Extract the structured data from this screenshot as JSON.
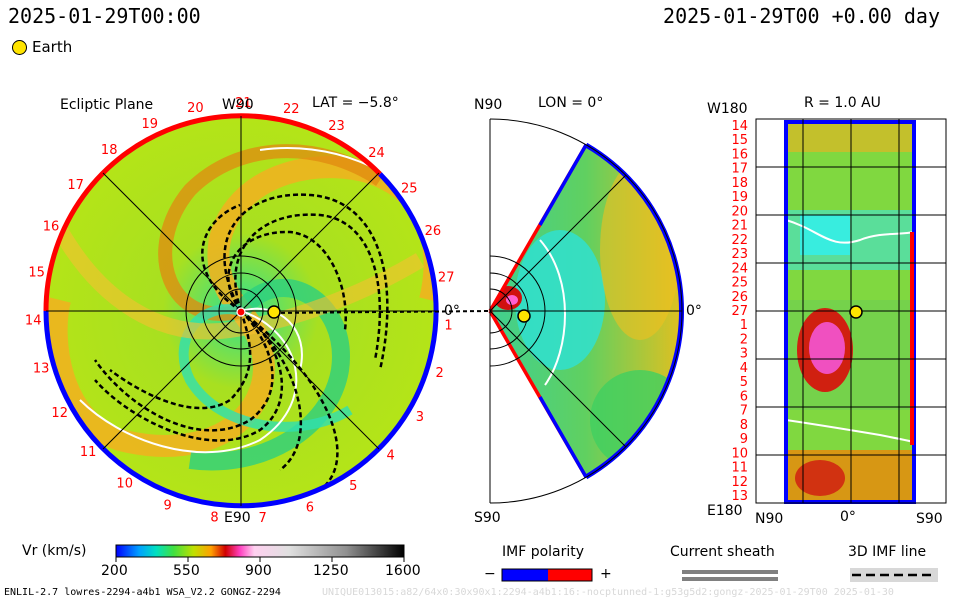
{
  "header": {
    "left_time": "2025-01-29T00:00",
    "right_time": "2025-01-29T00 +0.00 day",
    "legend_label": "Earth"
  },
  "colors": {
    "earth_fill": "#ffe400",
    "sector_red": "#ff0000",
    "sector_blue": "#0000ff"
  },
  "ecliptic": {
    "title": "Ecliptic Plane",
    "top_label": "W90",
    "bottom_label": "E90",
    "lat_label": "LAT = −5.8°",
    "zero_label": "0°",
    "rotation_numbers": [
      "1",
      "2",
      "3",
      "4",
      "5",
      "6",
      "7",
      "8",
      "9",
      "10",
      "11",
      "12",
      "13",
      "14",
      "15",
      "16",
      "17",
      "18",
      "19",
      "20",
      "21",
      "22",
      "23",
      "24",
      "25",
      "26",
      "27"
    ]
  },
  "meridional": {
    "top_label": "N90",
    "lon_label": "LON = 0°",
    "zero_label": "0°",
    "bottom_label": "S90"
  },
  "sphere": {
    "r_label": "R = 1.0 AU",
    "top_left": "W180",
    "bottom_left": "E180",
    "x_labels": [
      "N90",
      "0°",
      "S90"
    ],
    "y_labels": [
      "14",
      "15",
      "16",
      "17",
      "18",
      "19",
      "20",
      "21",
      "22",
      "23",
      "24",
      "25",
      "26",
      "27",
      "1",
      "2",
      "3",
      "4",
      "5",
      "6",
      "7",
      "8",
      "9",
      "10",
      "11",
      "12",
      "13"
    ]
  },
  "chart_data": {
    "type": "heatmap",
    "colorbar": {
      "label": "Vr (km/s)",
      "ticks": [
        200,
        550,
        900,
        1250,
        1600
      ],
      "range": [
        200,
        1600
      ]
    }
  },
  "legends": {
    "imf_polarity": {
      "title": "IMF polarity",
      "minus": "−",
      "plus": "+"
    },
    "current_sheath": {
      "title": "Current sheath"
    },
    "imf_line": {
      "title": "3D IMF line"
    }
  },
  "footer": {
    "left": "ENLIL-2.7 lowres-2294-a4b1 WSA_V2.2 GONGZ-2294",
    "right": "UNIQUE013015:a82/64x0:30x90x1:2294-a4b1:16:-nocptunned-1:g53g5d2:gongz-2025-01-29T00   2025-01-30"
  }
}
